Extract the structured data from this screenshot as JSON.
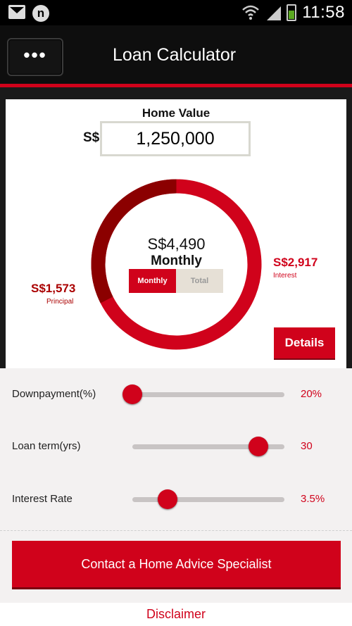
{
  "status_bar": {
    "time": "11:58",
    "icons": [
      "gmail-icon",
      "n-icon",
      "wifi-icon",
      "signal-icon",
      "battery-icon"
    ]
  },
  "app_bar": {
    "menu_label": "•••",
    "title": "Loan Calculator"
  },
  "home_value": {
    "label": "Home Value",
    "currency": "S$",
    "value": "1,250,000"
  },
  "chart_summary": {
    "center_amount": "S$4,490",
    "center_period": "Monthly",
    "toggle_monthly": "Monthly",
    "toggle_total": "Total",
    "toggle_selected": "Monthly",
    "principal_amount": "S$1,573",
    "principal_label": "Principal",
    "interest_amount": "S$2,917",
    "interest_label": "Interest",
    "principal_color": "#8b0000",
    "interest_color": "#d0021b"
  },
  "details_button": "Details",
  "sliders": [
    {
      "label": "Downpayment(%)",
      "value": "20%",
      "position": 0.0
    },
    {
      "label": "Loan term(yrs)",
      "value": "30",
      "position": 0.83
    },
    {
      "label": "Interest Rate",
      "value": "3.5%",
      "position": 0.23
    }
  ],
  "contact_button": "Contact a Home Advice Specialist",
  "disclaimer": "Disclaimer",
  "colors": {
    "accent": "#d0021b",
    "app_bar": "#0e0e0e"
  }
}
